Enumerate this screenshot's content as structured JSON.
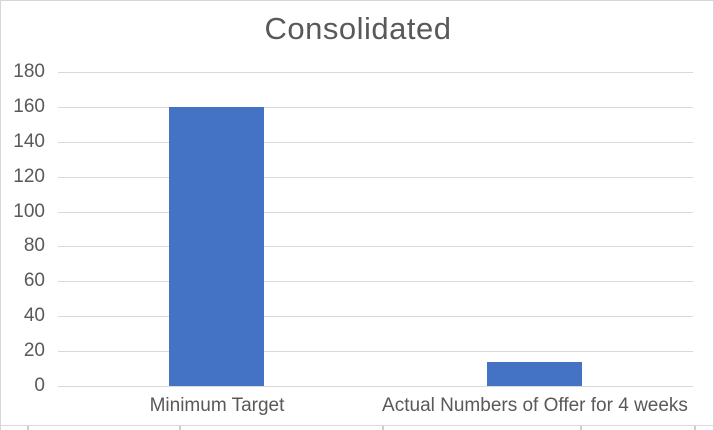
{
  "chart_data": {
    "type": "bar",
    "title": "Consolidated",
    "categories": [
      "Minimum Target",
      "Actual Numbers of Offer for 4 weeks"
    ],
    "values": [
      160,
      14
    ],
    "ylim": [
      0,
      180
    ],
    "yticks": [
      0,
      20,
      40,
      60,
      80,
      100,
      120,
      140,
      160,
      180
    ],
    "grid": true,
    "legend_position": "none",
    "xlabel": "",
    "ylabel": "",
    "colors": {
      "bar": "#4472C4",
      "gridline": "#D9D9D9",
      "axis_text": "#595959",
      "title_text": "#595959",
      "frame_border": "#D6D6D6"
    }
  }
}
